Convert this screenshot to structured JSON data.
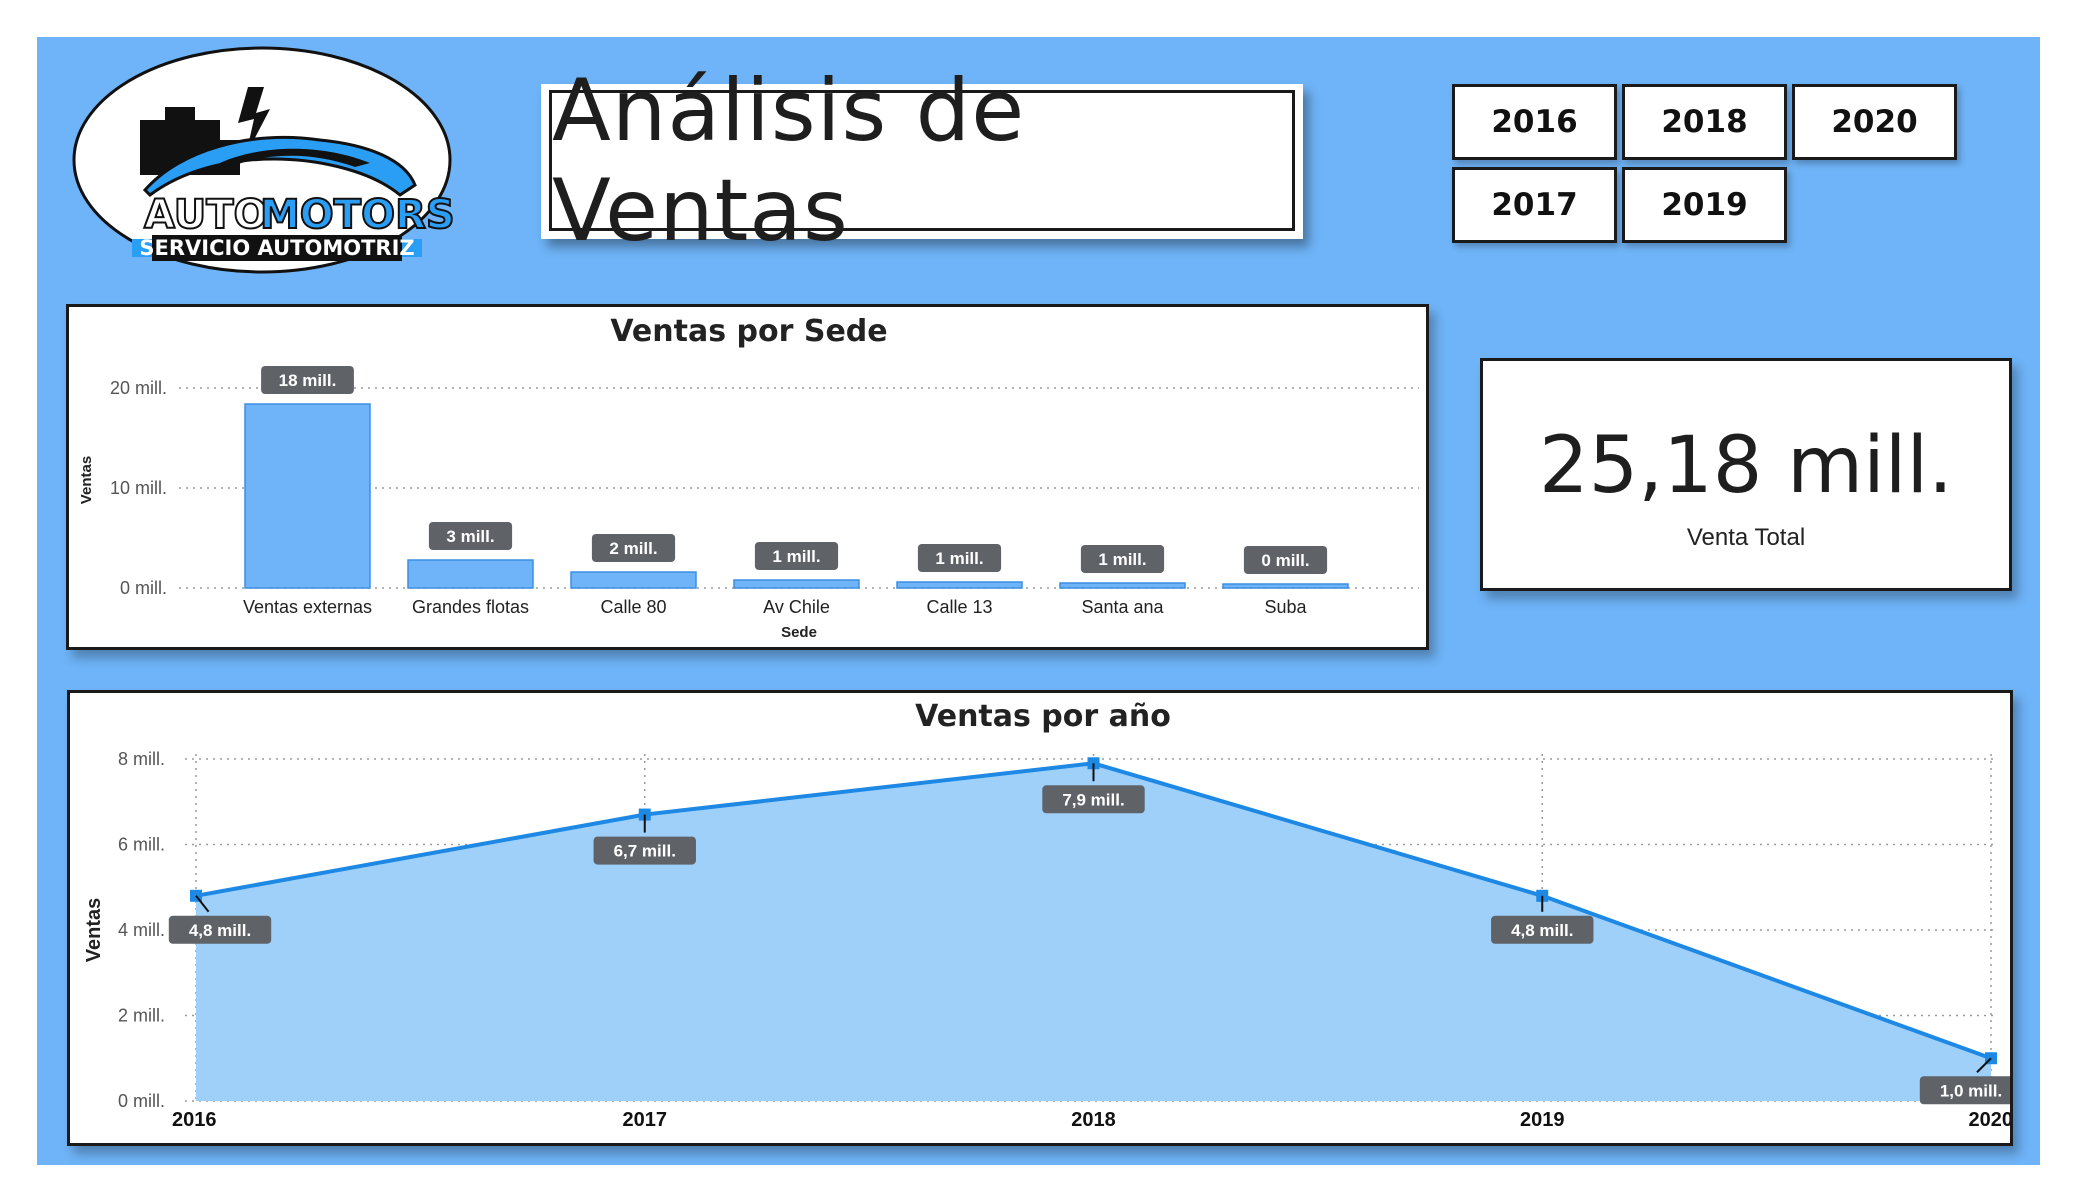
{
  "logo": {
    "line1a": "AUTO",
    "line1b": "MOTORS",
    "line2": "SERVICIO AUTOMOTRIZ"
  },
  "title": "Análisis de Ventas",
  "year_slicer": [
    "2016",
    "2018",
    "2020",
    "2017",
    "2019"
  ],
  "kpi": {
    "value": "25,18 mill.",
    "label": "Venta Total"
  },
  "colors": {
    "background": "#6fb4f8",
    "bar": "#6fb4f8",
    "line": "#1e88e5",
    "area": "#9fd0fa",
    "label_bg": "#5f6368"
  },
  "chart_data": [
    {
      "type": "bar",
      "title": "Ventas por Sede",
      "xlabel": "Sede",
      "ylabel": "Ventas",
      "ylim": [
        0,
        20
      ],
      "yticks": [
        "0 mill.",
        "10 mill.",
        "20 mill."
      ],
      "categories": [
        "Ventas externas",
        "Grandes flotas",
        "Calle 80",
        "Av Chile",
        "Calle 13",
        "Santa ana",
        "Suba"
      ],
      "values": [
        18.4,
        2.8,
        1.6,
        0.8,
        0.6,
        0.5,
        0.4
      ],
      "labels": [
        "18 mill.",
        "3 mill.",
        "2 mill.",
        "1 mill.",
        "1 mill.",
        "1 mill.",
        "0 mill."
      ],
      "grid": true
    },
    {
      "type": "area",
      "title": "Ventas por año",
      "xlabel": "",
      "ylabel": "Ventas",
      "ylim": [
        0,
        8
      ],
      "yticks": [
        "0 mill.",
        "2 mill.",
        "4 mill.",
        "6 mill.",
        "8 mill."
      ],
      "x": [
        "2016",
        "2017",
        "2018",
        "2019",
        "2020"
      ],
      "values": [
        4.8,
        6.7,
        7.9,
        4.8,
        1.0
      ],
      "labels": [
        "4,8 mill.",
        "6,7 mill.",
        "7,9 mill.",
        "4,8 mill.",
        "1,0 mill."
      ],
      "grid": true
    }
  ]
}
